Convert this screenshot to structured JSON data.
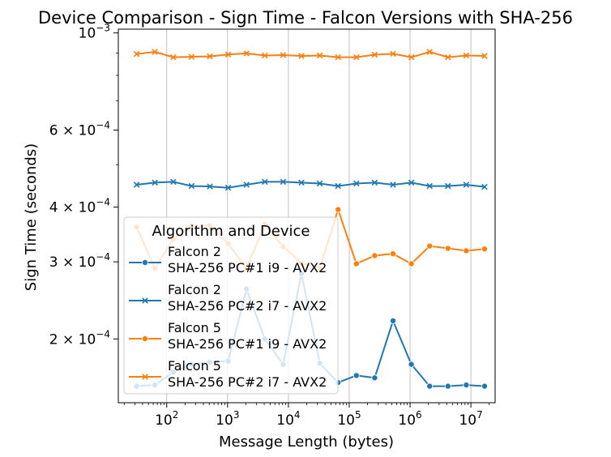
{
  "chart_data": {
    "type": "line",
    "title": "Device Comparison - Sign Time - Falcon Versions with SHA-256",
    "xlabel": "Message Length (bytes)",
    "ylabel": "Sign Time (seconds)",
    "x_scale": "log",
    "y_scale": "log",
    "xlim": [
      16,
      25000000
    ],
    "ylim": [
      0.000143,
      0.00102
    ],
    "x_ticks": [
      {
        "value": 100,
        "base": "10",
        "exp": "2"
      },
      {
        "value": 1000,
        "base": "10",
        "exp": "3"
      },
      {
        "value": 10000,
        "base": "10",
        "exp": "4"
      },
      {
        "value": 100000,
        "base": "10",
        "exp": "5"
      },
      {
        "value": 1000000,
        "base": "10",
        "exp": "6"
      },
      {
        "value": 10000000,
        "base": "10",
        "exp": "7"
      }
    ],
    "y_ticks": [
      {
        "value": 0.0002,
        "mant": "2",
        "base": "10",
        "exp": "−4"
      },
      {
        "value": 0.0003,
        "mant": "3",
        "base": "10",
        "exp": "−4"
      },
      {
        "value": 0.0004,
        "mant": "4",
        "base": "10",
        "exp": "−4"
      },
      {
        "value": 0.0006,
        "mant": "6",
        "base": "10",
        "exp": "−4"
      },
      {
        "value": 0.001,
        "mant": "",
        "base": "10",
        "exp": "−3"
      }
    ],
    "grid": "vertical",
    "x": [
      32,
      64,
      128,
      256,
      512,
      1024,
      2048,
      4096,
      8192,
      16384,
      32768,
      65536,
      131072,
      262144,
      524288,
      1048576,
      2097152,
      4194304,
      8388608,
      16777216
    ],
    "legend": {
      "title": "Algorithm and Device",
      "placement": "lower-left",
      "entries": [
        {
          "line1": "Falcon 2",
          "line2": "SHA-256 PC#1 i9 - AVX2"
        },
        {
          "line1": "Falcon 2",
          "line2": "SHA-256 PC#2 i7 - AVX2"
        },
        {
          "line1": "Falcon 5",
          "line2": "SHA-256 PC#1 i9 - AVX2"
        },
        {
          "line1": "Falcon 5",
          "line2": "SHA-256 PC#2 i7 - AVX2"
        }
      ]
    },
    "series": [
      {
        "name": "Falcon 2 SHA-256 PC#1 i9 - AVX2",
        "color": "#1f77b4",
        "marker": "circle",
        "values": [
          0.000156,
          0.000157,
          0.000168,
          0.000175,
          0.000177,
          0.000178,
          0.00026,
          0.0002,
          0.000175,
          0.000282,
          0.000176,
          0.000159,
          0.000165,
          0.000163,
          0.00022,
          0.000175,
          0.000156,
          0.000156,
          0.000157,
          0.000156
        ]
      },
      {
        "name": "Falcon 2 SHA-256 PC#2 i7 - AVX2",
        "color": "#1f77b4",
        "marker": "x",
        "values": [
          0.00045,
          0.000455,
          0.000457,
          0.000447,
          0.000446,
          0.000443,
          0.00045,
          0.000457,
          0.000457,
          0.000455,
          0.000453,
          0.000447,
          0.000453,
          0.000455,
          0.00045,
          0.000455,
          0.000447,
          0.000447,
          0.00045,
          0.000445
        ]
      },
      {
        "name": "Falcon 5 SHA-256 PC#1 i9 - AVX2",
        "color": "#ff7f0e",
        "marker": "circle",
        "values": [
          0.00036,
          0.00029,
          0.000338,
          0.000362,
          0.000363,
          0.00033,
          0.00029,
          0.000365,
          0.000325,
          0.000298,
          0.00029,
          0.000395,
          0.000297,
          0.00031,
          0.000313,
          0.000297,
          0.000326,
          0.000322,
          0.000318,
          0.000321
        ]
      },
      {
        "name": "Falcon 5 SHA-256 PC#2 i7 - AVX2",
        "color": "#ff7f0e",
        "marker": "x",
        "values": [
          0.000895,
          0.000905,
          0.00088,
          0.000882,
          0.000884,
          0.000893,
          0.000898,
          0.000888,
          0.00089,
          0.000886,
          0.000888,
          0.00088,
          0.00088,
          0.000892,
          0.000896,
          0.00088,
          0.000905,
          0.00088,
          0.000888,
          0.000886
        ]
      }
    ]
  }
}
